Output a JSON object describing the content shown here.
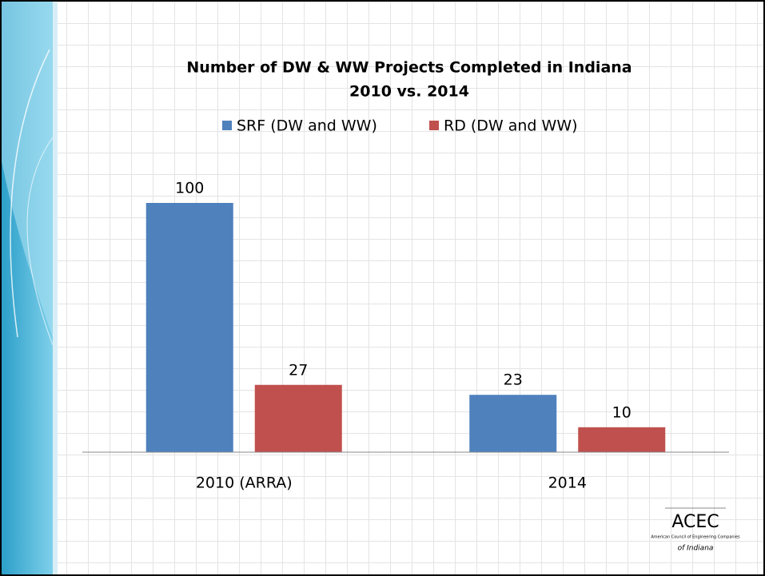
{
  "chart_data": {
    "type": "bar",
    "title": "Number of DW & WW Projects Completed in Indiana",
    "subtitle": "2010 vs. 2014",
    "categories": [
      "2010 (ARRA)",
      "2014"
    ],
    "series": [
      {
        "name": "SRF (DW and WW)",
        "color": "#4f81bd",
        "values": [
          100,
          23
        ]
      },
      {
        "name": "RD (DW and WW)",
        "color": "#c0504d",
        "values": [
          27,
          10
        ]
      }
    ],
    "ylim": [
      0,
      100
    ]
  },
  "logo": {
    "name": "ACEC",
    "org": "American Council of Engineering Companies",
    "region": "of Indiana"
  }
}
